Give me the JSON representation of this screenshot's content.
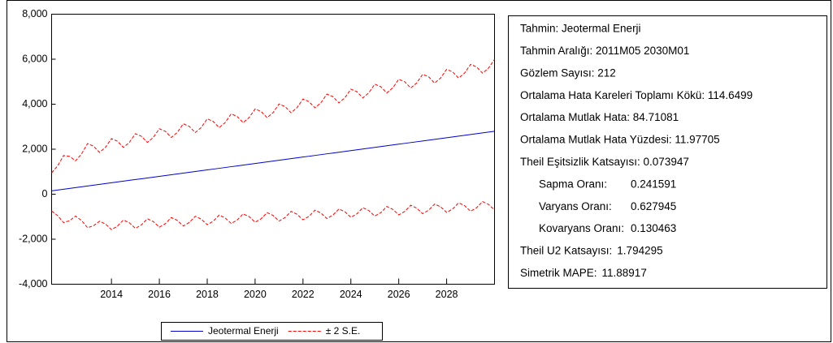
{
  "chart_data": {
    "type": "line",
    "x": [
      2011.5,
      2011.75,
      2012,
      2012.25,
      2012.5,
      2012.75,
      2013,
      2013.25,
      2013.5,
      2013.75,
      2014,
      2014.25,
      2014.5,
      2014.75,
      2015,
      2015.25,
      2015.5,
      2015.75,
      2016,
      2016.25,
      2016.5,
      2016.75,
      2017,
      2017.25,
      2017.5,
      2017.75,
      2018,
      2018.25,
      2018.5,
      2018.75,
      2019,
      2019.25,
      2019.5,
      2019.75,
      2020,
      2020.25,
      2020.5,
      2020.75,
      2021,
      2021.25,
      2021.5,
      2021.75,
      2022,
      2022.25,
      2022.5,
      2022.75,
      2023,
      2023.25,
      2023.5,
      2023.75,
      2024,
      2024.25,
      2024.5,
      2024.75,
      2025,
      2025.25,
      2025.5,
      2025.75,
      2026,
      2026.25,
      2026.5,
      2026.75,
      2027,
      2027.25,
      2027.5,
      2027.75,
      2028,
      2028.25,
      2028.5,
      2028.75,
      2029,
      2029.25,
      2029.5,
      2029.75,
      2030
    ],
    "series": [
      {
        "name": "Jeotermal Enerji",
        "color": "#0000cc",
        "values": [
          150,
          186,
          222,
          257,
          293,
          329,
          365,
          400,
          436,
          472,
          508,
          543,
          579,
          615,
          651,
          686,
          722,
          758,
          794,
          829,
          865,
          901,
          937,
          972,
          1008,
          1044,
          1080,
          1115,
          1151,
          1187,
          1223,
          1258,
          1294,
          1330,
          1366,
          1401,
          1437,
          1473,
          1509,
          1544,
          1580,
          1616,
          1652,
          1687,
          1723,
          1759,
          1795,
          1830,
          1866,
          1902,
          1938,
          1973,
          2009,
          2045,
          2081,
          2116,
          2152,
          2188,
          2224,
          2259,
          2295,
          2331,
          2367,
          2402,
          2438,
          2474,
          2510,
          2545,
          2581,
          2617,
          2653,
          2688,
          2724,
          2760,
          2796
        ]
      },
      {
        "name": "± 2 S.E.",
        "color": "#ff0000",
        "dashed": true,
        "upper": [
          950,
          1253,
          1717,
          1680,
          1483,
          1787,
          2250,
          2135,
          1860,
          2085,
          2470,
          2355,
          2080,
          2305,
          2690,
          2575,
          2300,
          2525,
          2910,
          2795,
          2520,
          2745,
          3130,
          3015,
          2740,
          2965,
          3350,
          3235,
          2960,
          3185,
          3570,
          3455,
          3180,
          3405,
          3790,
          3675,
          3400,
          3625,
          4010,
          3895,
          3620,
          3845,
          4230,
          4115,
          3840,
          4065,
          4450,
          4335,
          4060,
          4285,
          4670,
          4555,
          4280,
          4505,
          4890,
          4775,
          4500,
          4725,
          5110,
          4995,
          4720,
          4945,
          5330,
          5215,
          4940,
          5165,
          5550,
          5435,
          5160,
          5385,
          5770,
          5655,
          5380,
          5605,
          5990
        ],
        "lower": [
          -750,
          -946,
          -1263,
          -1179,
          -975,
          -1171,
          -1488,
          -1404,
          -1200,
          -1326,
          -1573,
          -1419,
          -1146,
          -1272,
          -1518,
          -1365,
          -1091,
          -1217,
          -1464,
          -1310,
          -1037,
          -1163,
          -1409,
          -1256,
          -982,
          -1108,
          -1355,
          -1201,
          -928,
          -1054,
          -1300,
          -1147,
          -873,
          -999,
          -1246,
          -1092,
          -818,
          -945,
          -1191,
          -1038,
          -764,
          -890,
          -1137,
          -983,
          -709,
          -836,
          -1082,
          -929,
          -655,
          -781,
          -1028,
          -874,
          -600,
          -727,
          -973,
          -820,
          -546,
          -672,
          -919,
          -765,
          -491,
          -618,
          -864,
          -710,
          -437,
          -563,
          -810,
          -656,
          -382,
          -509,
          -755,
          -601,
          -328,
          -454,
          -700
        ]
      }
    ],
    "xlim": [
      2011.5,
      2030
    ],
    "xticks": [
      2014,
      2016,
      2018,
      2020,
      2022,
      2024,
      2026,
      2028
    ],
    "ylim": [
      -4000,
      8000
    ],
    "yticks": [
      {
        "value": -4000,
        "label": "-4,000"
      },
      {
        "value": -2000,
        "label": "-2,000"
      },
      0,
      {
        "value": 2000,
        "label": "2,000"
      },
      {
        "value": 4000,
        "label": "4,000"
      },
      {
        "value": 6000,
        "label": "6,000"
      },
      {
        "value": 8000,
        "label": "8,000"
      }
    ],
    "grid": false
  },
  "stats": {
    "lines": [
      "Tahmin: Jeotermal Enerji",
      "Tahmin Aralığı: 2011M05 2030M01",
      "Gözlem Sayısı: 212",
      "Ortalama Hata Kareleri Toplamı Kökü: 114.6499",
      "Ortalama Mutlak Hata: 84.71081",
      "Ortalama Mutlak Hata Yüzdesi: 11.97705",
      "Theil Eşitsizlik Katsayısı: 0.073947"
    ],
    "components": [
      {
        "label": "Sapma Oranı:",
        "value": 0.241591
      },
      {
        "label": "Varyans Oranı:",
        "value": 0.627945
      },
      {
        "label": "Kovaryans Oranı:",
        "value": 0.130463
      }
    ],
    "extra": [
      {
        "label": "Theil U2 Katsayısı:",
        "value": 1.794295
      },
      {
        "label": "Simetrik MAPE:",
        "value": 11.88917
      }
    ]
  }
}
